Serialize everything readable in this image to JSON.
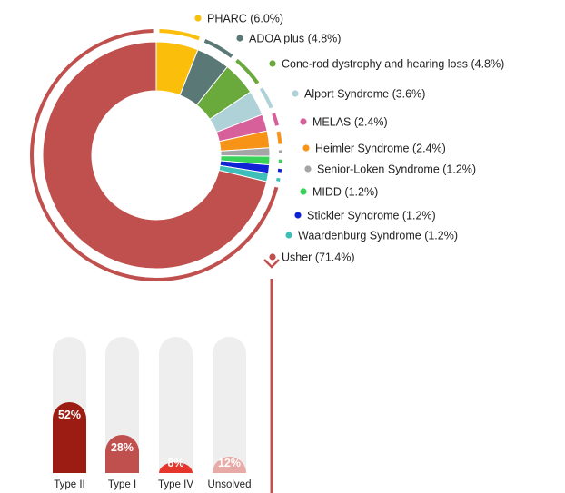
{
  "chart_data": [
    {
      "type": "pie",
      "categories": [
        "PHARC",
        "ADOA plus",
        "Cone-rod dystrophy and hearing loss",
        "Alport Syndrome",
        "MELAS",
        "Heimler Syndrome",
        "Senior-Loken Syndrome",
        "MIDD",
        "Stickler Syndrome",
        "Waardenburg Syndrome",
        "Usher"
      ],
      "values": [
        6.0,
        4.8,
        4.8,
        3.6,
        2.4,
        2.4,
        1.2,
        1.2,
        1.2,
        1.2,
        71.4
      ],
      "labels": [
        "PHARC (6.0%)",
        "ADOA plus  (4.8%)",
        "Cone-rod dystrophy and hearing loss (4.8%)",
        "Alport Syndrome (3.6%)",
        "MELAS (2.4%)",
        "Heimler Syndrome (2.4%)",
        "Senior-Loken Syndrome (1.2%)",
        "MIDD (1.2%)",
        "Stickler Syndrome (1.2%)",
        "Waardenburg Syndrome (1.2%)",
        "Usher (71.4%)"
      ],
      "colors": [
        "#fbbf0b",
        "#5a7876",
        "#6aaa3c",
        "#aed2d8",
        "#d8609a",
        "#f79418",
        "#a5a5a5",
        "#39d35a",
        "#1022d6",
        "#3dbfb8",
        "#c0504d"
      ],
      "donut": true,
      "legend": "right"
    },
    {
      "type": "bar",
      "categories": [
        "Type II",
        "Type I",
        "Type IV",
        "Unsolved"
      ],
      "values": [
        52,
        28,
        8,
        12
      ],
      "labels": [
        "52%",
        "28%",
        "8%",
        "12%"
      ],
      "colors": [
        "#9c1b12",
        "#c0504d",
        "#e6362c",
        "#e8aaa6"
      ],
      "ylim": [
        0,
        100
      ]
    }
  ]
}
